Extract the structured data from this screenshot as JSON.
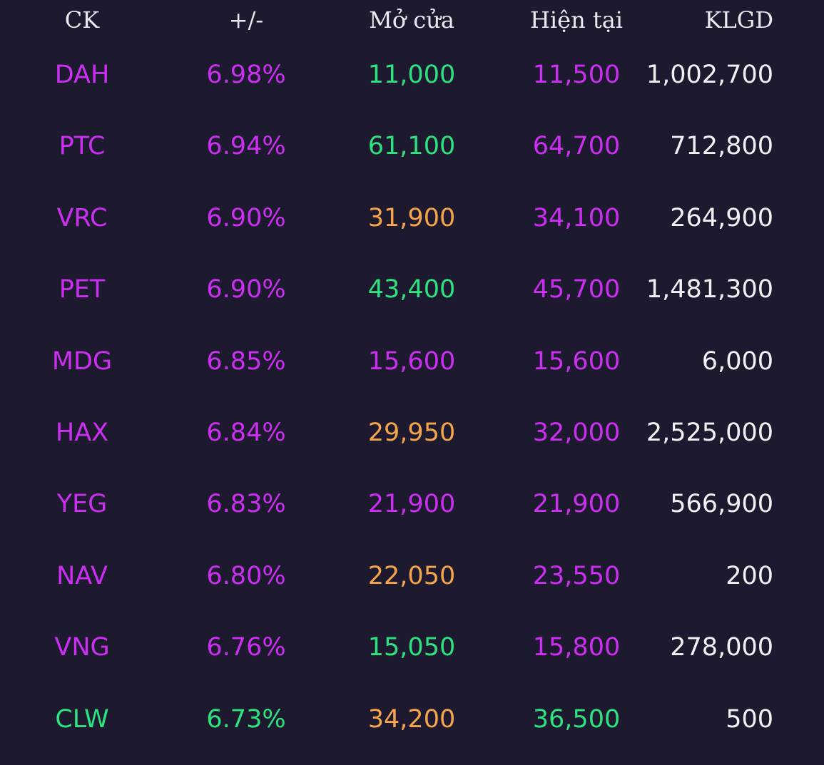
{
  "headers": {
    "ck": "CK",
    "change": "+/-",
    "open": "Mở cửa",
    "current": "Hiện tại",
    "volume": "KLGD"
  },
  "colors": {
    "background": "#1d1a2f",
    "ceiling": "#cc2ff2",
    "up": "#2ee27f",
    "down": "#f5a54b",
    "neutral": "#f1f1f5"
  },
  "rows": [
    {
      "ck": "DAH",
      "ck_color": "purple",
      "change": "6.98%",
      "change_color": "purple",
      "open": "11,000",
      "open_color": "green",
      "current": "11,500",
      "current_color": "purple",
      "volume": "1,002,700"
    },
    {
      "ck": "PTC",
      "ck_color": "purple",
      "change": "6.94%",
      "change_color": "purple",
      "open": "61,100",
      "open_color": "green",
      "current": "64,700",
      "current_color": "purple",
      "volume": "712,800"
    },
    {
      "ck": "VRC",
      "ck_color": "purple",
      "change": "6.90%",
      "change_color": "purple",
      "open": "31,900",
      "open_color": "orange",
      "current": "34,100",
      "current_color": "purple",
      "volume": "264,900"
    },
    {
      "ck": "PET",
      "ck_color": "purple",
      "change": "6.90%",
      "change_color": "purple",
      "open": "43,400",
      "open_color": "green",
      "current": "45,700",
      "current_color": "purple",
      "volume": "1,481,300"
    },
    {
      "ck": "MDG",
      "ck_color": "purple",
      "change": "6.85%",
      "change_color": "purple",
      "open": "15,600",
      "open_color": "purple",
      "current": "15,600",
      "current_color": "purple",
      "volume": "6,000"
    },
    {
      "ck": "HAX",
      "ck_color": "purple",
      "change": "6.84%",
      "change_color": "purple",
      "open": "29,950",
      "open_color": "orange",
      "current": "32,000",
      "current_color": "purple",
      "volume": "2,525,000"
    },
    {
      "ck": "YEG",
      "ck_color": "purple",
      "change": "6.83%",
      "change_color": "purple",
      "open": "21,900",
      "open_color": "purple",
      "current": "21,900",
      "current_color": "purple",
      "volume": "566,900"
    },
    {
      "ck": "NAV",
      "ck_color": "purple",
      "change": "6.80%",
      "change_color": "purple",
      "open": "22,050",
      "open_color": "orange",
      "current": "23,550",
      "current_color": "purple",
      "volume": "200"
    },
    {
      "ck": "VNG",
      "ck_color": "purple",
      "change": "6.76%",
      "change_color": "purple",
      "open": "15,050",
      "open_color": "green",
      "current": "15,800",
      "current_color": "purple",
      "volume": "278,000"
    },
    {
      "ck": "CLW",
      "ck_color": "green",
      "change": "6.73%",
      "change_color": "green",
      "open": "34,200",
      "open_color": "orange",
      "current": "36,500",
      "current_color": "green",
      "volume": "500"
    }
  ]
}
